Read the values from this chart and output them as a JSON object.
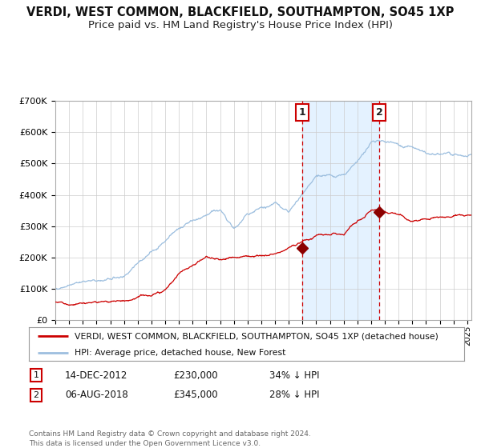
{
  "title": "VERDI, WEST COMMON, BLACKFIELD, SOUTHAMPTON, SO45 1XP",
  "subtitle": "Price paid vs. HM Land Registry's House Price Index (HPI)",
  "title_fontsize": 10.5,
  "subtitle_fontsize": 9.5,
  "hpi_color": "#9dbfdf",
  "price_color": "#cc0000",
  "background_color": "#ffffff",
  "grid_color": "#cccccc",
  "ylim": [
    0,
    700000
  ],
  "xlim_start": 1995.0,
  "xlim_end": 2025.3,
  "purchase1_date": 2012.96,
  "purchase1_price": 230000,
  "purchase2_date": 2018.59,
  "purchase2_price": 345000,
  "legend_entry1": "VERDI, WEST COMMON, BLACKFIELD, SOUTHAMPTON, SO45 1XP (detached house)",
  "legend_entry2": "HPI: Average price, detached house, New Forest",
  "annotation1_date": "14-DEC-2012",
  "annotation1_price": "£230,000",
  "annotation1_hpi": "34% ↓ HPI",
  "annotation2_date": "06-AUG-2018",
  "annotation2_price": "£345,000",
  "annotation2_hpi": "28% ↓ HPI",
  "footer": "Contains HM Land Registry data © Crown copyright and database right 2024.\nThis data is licensed under the Open Government Licence v3.0."
}
